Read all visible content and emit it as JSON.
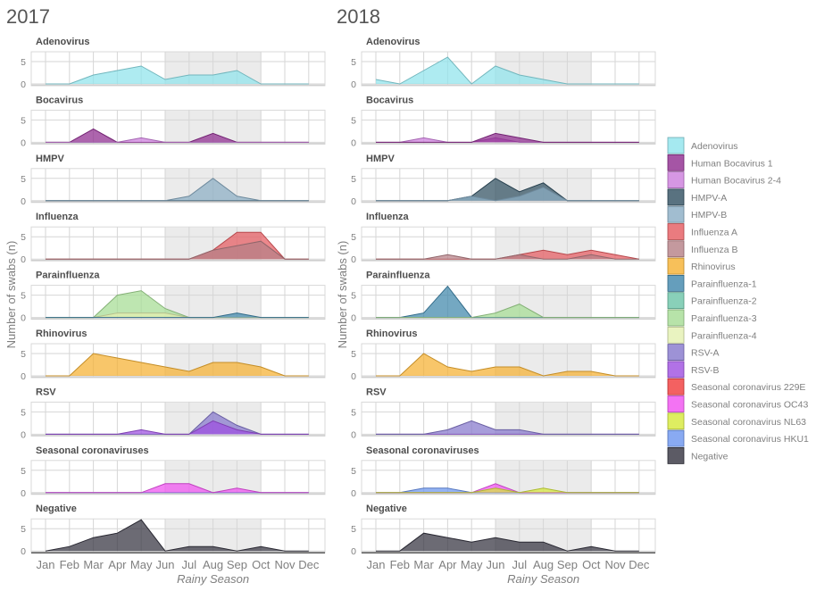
{
  "chart_data": {
    "type": "area",
    "ylabel": "Number of swabs (n)",
    "xlabel": "Rainy Season",
    "categories": [
      "Jan",
      "Feb",
      "Mar",
      "Apr",
      "May",
      "Jun",
      "Jul",
      "Aug",
      "Sep",
      "Oct",
      "Nov",
      "Dec"
    ],
    "ylim": [
      0,
      7
    ],
    "yticks": [
      "0",
      "5"
    ],
    "rainy_season": [
      "Jun",
      "Oct"
    ],
    "grid": true,
    "legend_position": "right",
    "legend": [
      {
        "name": "Adenovirus",
        "color": "#8fe3ec"
      },
      {
        "name": "Human Bocavirus 1",
        "color": "#8e2a8e"
      },
      {
        "name": "Human Bocavirus 2-4",
        "color": "#cc7ddc"
      },
      {
        "name": "HMPV-A",
        "color": "#2f4f60"
      },
      {
        "name": "HMPV-B",
        "color": "#8aadc4"
      },
      {
        "name": "Influenza A",
        "color": "#e55a5f"
      },
      {
        "name": "Influenza B",
        "color": "#b57f86"
      },
      {
        "name": "Rhinovirus",
        "color": "#f5b031"
      },
      {
        "name": "Parainfluenza-1",
        "color": "#3e86ab"
      },
      {
        "name": "Parainfluenza-2",
        "color": "#6cc4a8"
      },
      {
        "name": "Parainfluenza-3",
        "color": "#a5dc93"
      },
      {
        "name": "Parainfluenza-4",
        "color": "#e4f0b0"
      },
      {
        "name": "RSV-A",
        "color": "#8577cc"
      },
      {
        "name": "RSV-B",
        "color": "#9d4fe0"
      },
      {
        "name": "Seasonal coronavirus 229E",
        "color": "#f03a3a"
      },
      {
        "name": "Seasonal coronavirus OC43",
        "color": "#f050f0"
      },
      {
        "name": "Seasonal coronavirus NL63",
        "color": "#d6e83a"
      },
      {
        "name": "Seasonal coronavirus HKU1",
        "color": "#6b95ef"
      },
      {
        "name": "Negative",
        "color": "#33323e"
      }
    ],
    "years": [
      {
        "title": "2017",
        "panels": [
          {
            "title": "Adenovirus",
            "series": [
              {
                "name": "Adenovirus",
                "values": [
                  0,
                  0,
                  2,
                  3,
                  4,
                  1,
                  2,
                  2,
                  3,
                  0,
                  0,
                  0
                ]
              }
            ]
          },
          {
            "title": "Bocavirus",
            "series": [
              {
                "name": "Human Bocavirus 1",
                "values": [
                  0,
                  0,
                  3,
                  0,
                  0,
                  0,
                  0,
                  2,
                  0,
                  0,
                  0,
                  0
                ]
              },
              {
                "name": "Human Bocavirus 2-4",
                "values": [
                  0,
                  0,
                  0,
                  0,
                  1,
                  0,
                  0,
                  0,
                  0,
                  0,
                  0,
                  0
                ]
              }
            ]
          },
          {
            "title": "HMPV",
            "series": [
              {
                "name": "HMPV-A",
                "values": [
                  0,
                  0,
                  0,
                  0,
                  0,
                  0,
                  0,
                  0,
                  0,
                  0,
                  0,
                  0
                ]
              },
              {
                "name": "HMPV-B",
                "values": [
                  0,
                  0,
                  0,
                  0,
                  0,
                  0,
                  1,
                  5,
                  1,
                  0,
                  0,
                  0
                ]
              }
            ]
          },
          {
            "title": "Influenza",
            "series": [
              {
                "name": "Influenza A",
                "values": [
                  0,
                  0,
                  0,
                  0,
                  0,
                  0,
                  0,
                  2,
                  6,
                  6,
                  0,
                  0
                ]
              },
              {
                "name": "Influenza B",
                "values": [
                  0,
                  0,
                  0,
                  0,
                  0,
                  0,
                  0,
                  2,
                  3,
                  4,
                  0,
                  0
                ]
              }
            ]
          },
          {
            "title": "Parainfluenza",
            "series": [
              {
                "name": "Parainfluenza-3",
                "values": [
                  0,
                  0,
                  0,
                  5,
                  6,
                  2,
                  0,
                  0,
                  0,
                  0,
                  0,
                  0
                ]
              },
              {
                "name": "Parainfluenza-4",
                "values": [
                  0,
                  0,
                  0,
                  1,
                  1,
                  1,
                  0,
                  0,
                  0,
                  0,
                  0,
                  0
                ]
              },
              {
                "name": "Parainfluenza-1",
                "values": [
                  0,
                  0,
                  0,
                  0,
                  0,
                  0,
                  0,
                  0,
                  1,
                  0,
                  0,
                  0
                ]
              }
            ]
          },
          {
            "title": "Rhinovirus",
            "series": [
              {
                "name": "Rhinovirus",
                "values": [
                  0,
                  0,
                  5,
                  4,
                  3,
                  2,
                  1,
                  3,
                  3,
                  2,
                  0,
                  0
                ]
              }
            ]
          },
          {
            "title": "RSV",
            "series": [
              {
                "name": "RSV-A",
                "values": [
                  0,
                  0,
                  0,
                  0,
                  0,
                  0,
                  0,
                  5,
                  2,
                  0,
                  0,
                  0
                ]
              },
              {
                "name": "RSV-B",
                "values": [
                  0,
                  0,
                  0,
                  0,
                  1,
                  0,
                  0,
                  3,
                  1,
                  0,
                  0,
                  0
                ]
              }
            ]
          },
          {
            "title": "Seasonal coronaviruses",
            "series": [
              {
                "name": "Seasonal coronavirus HKU1",
                "values": [
                  0,
                  0,
                  0,
                  0,
                  0,
                  0,
                  0,
                  0,
                  0,
                  0,
                  0,
                  0
                ]
              },
              {
                "name": "Seasonal coronavirus OC43",
                "values": [
                  0,
                  0,
                  0,
                  0,
                  0,
                  2,
                  2,
                  0,
                  1,
                  0,
                  0,
                  0
                ]
              }
            ]
          },
          {
            "title": "Negative",
            "series": [
              {
                "name": "Negative",
                "values": [
                  0,
                  1,
                  3,
                  4,
                  7,
                  0,
                  1,
                  1,
                  0,
                  1,
                  0,
                  0
                ]
              }
            ]
          }
        ]
      },
      {
        "title": "2018",
        "panels": [
          {
            "title": "Adenovirus",
            "series": [
              {
                "name": "Adenovirus",
                "values": [
                  1,
                  0,
                  3,
                  6,
                  0,
                  4,
                  2,
                  1,
                  0,
                  0,
                  0,
                  0
                ]
              }
            ]
          },
          {
            "title": "Bocavirus",
            "series": [
              {
                "name": "Human Bocavirus 2-4",
                "values": [
                  0,
                  0,
                  1,
                  0,
                  0,
                  1,
                  0,
                  0,
                  0,
                  0,
                  0,
                  0
                ]
              },
              {
                "name": "Human Bocavirus 1",
                "values": [
                  0,
                  0,
                  0,
                  0,
                  0,
                  2,
                  1,
                  0,
                  0,
                  0,
                  0,
                  0
                ]
              }
            ]
          },
          {
            "title": "HMPV",
            "series": [
              {
                "name": "HMPV-A",
                "values": [
                  0,
                  0,
                  0,
                  0,
                  1,
                  5,
                  2,
                  4,
                  0,
                  0,
                  0,
                  0
                ]
              },
              {
                "name": "HMPV-B",
                "values": [
                  0,
                  0,
                  0,
                  0,
                  1,
                  0,
                  1,
                  3,
                  0,
                  0,
                  0,
                  0
                ]
              }
            ]
          },
          {
            "title": "Influenza",
            "series": [
              {
                "name": "Influenza A",
                "values": [
                  0,
                  0,
                  0,
                  0,
                  0,
                  0,
                  1,
                  2,
                  1,
                  2,
                  1,
                  0
                ]
              },
              {
                "name": "Influenza B",
                "values": [
                  0,
                  0,
                  0,
                  1,
                  0,
                  0,
                  1,
                  0,
                  0,
                  1,
                  0,
                  0
                ]
              }
            ]
          },
          {
            "title": "Parainfluenza",
            "series": [
              {
                "name": "Parainfluenza-4",
                "values": [
                  0,
                  0,
                  0,
                  0,
                  0,
                  0,
                  0,
                  0,
                  0,
                  0,
                  0,
                  0
                ]
              },
              {
                "name": "Parainfluenza-1",
                "values": [
                  0,
                  0,
                  1,
                  7,
                  0,
                  0,
                  0,
                  0,
                  0,
                  0,
                  0,
                  0
                ]
              },
              {
                "name": "Parainfluenza-3",
                "values": [
                  0,
                  0,
                  0,
                  0,
                  0,
                  1,
                  3,
                  0,
                  0,
                  0,
                  0,
                  0
                ]
              }
            ]
          },
          {
            "title": "Rhinovirus",
            "series": [
              {
                "name": "Rhinovirus",
                "values": [
                  0,
                  0,
                  5,
                  2,
                  1,
                  2,
                  2,
                  0,
                  1,
                  1,
                  0,
                  0
                ]
              }
            ]
          },
          {
            "title": "RSV",
            "series": [
              {
                "name": "RSV-B",
                "values": [
                  0,
                  0,
                  0,
                  0,
                  0,
                  0,
                  0,
                  0,
                  0,
                  0,
                  0,
                  0
                ]
              },
              {
                "name": "RSV-A",
                "values": [
                  0,
                  0,
                  0,
                  1,
                  3,
                  1,
                  1,
                  0,
                  0,
                  0,
                  0,
                  0
                ]
              }
            ]
          },
          {
            "title": "Seasonal coronaviruses",
            "series": [
              {
                "name": "Seasonal coronavirus HKU1",
                "values": [
                  0,
                  0,
                  1,
                  1,
                  0,
                  0,
                  0,
                  0,
                  0,
                  0,
                  0,
                  0
                ]
              },
              {
                "name": "Seasonal coronavirus OC43",
                "values": [
                  0,
                  0,
                  0,
                  0,
                  0,
                  2,
                  0,
                  0,
                  0,
                  0,
                  0,
                  0
                ]
              },
              {
                "name": "Seasonal coronavirus NL63",
                "values": [
                  0,
                  0,
                  0,
                  0,
                  0,
                  1,
                  0,
                  1,
                  0,
                  0,
                  0,
                  0
                ]
              }
            ]
          },
          {
            "title": "Negative",
            "series": [
              {
                "name": "Negative",
                "values": [
                  0,
                  0,
                  4,
                  3,
                  2,
                  3,
                  2,
                  2,
                  0,
                  1,
                  0,
                  0
                ]
              }
            ]
          }
        ]
      }
    ]
  }
}
